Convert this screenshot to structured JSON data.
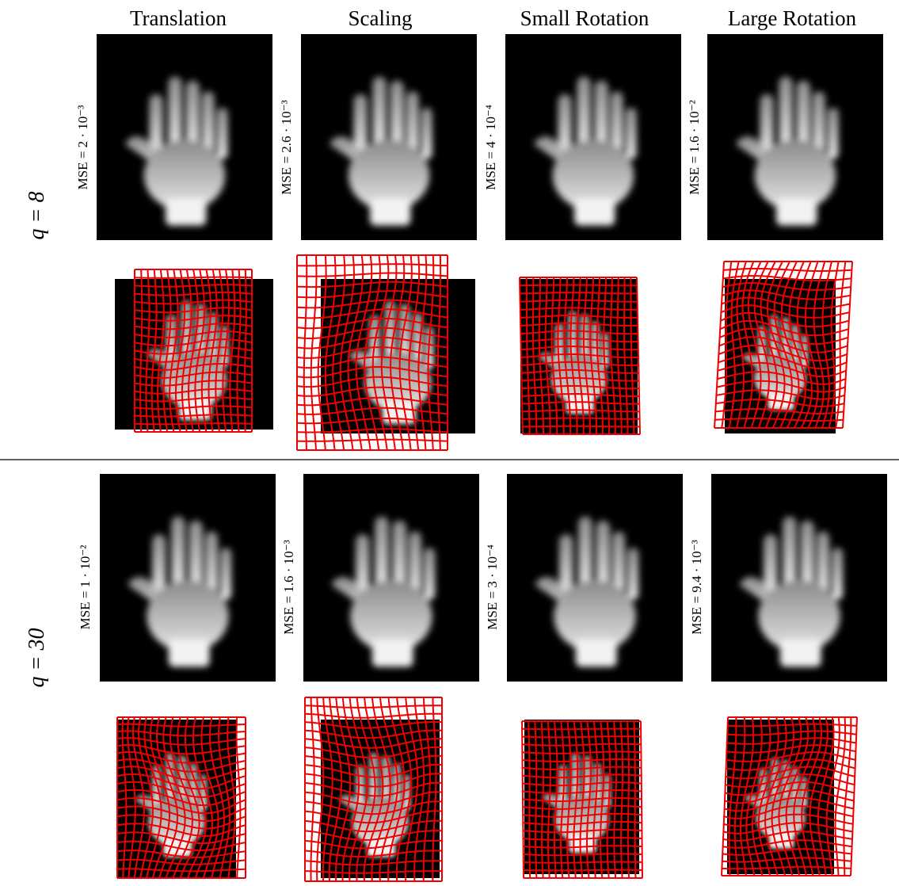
{
  "columns": [
    "Translation",
    "Scaling",
    "Small Rotation",
    "Large Rotation"
  ],
  "rows": [
    {
      "label": "q = 8",
      "mse": [
        "MSE = 2 · 10⁻³",
        "MSE = 2.6 · 10⁻³",
        "MSE = 4 · 10⁻⁴",
        "MSE = 1.6 · 10⁻²"
      ]
    },
    {
      "label": "q = 30",
      "mse": [
        "MSE = 1 · 10⁻²",
        "MSE = 1.6 · 10⁻³",
        "MSE = 3 · 10⁻⁴",
        "MSE = 9.4 · 10⁻³"
      ]
    }
  ]
}
